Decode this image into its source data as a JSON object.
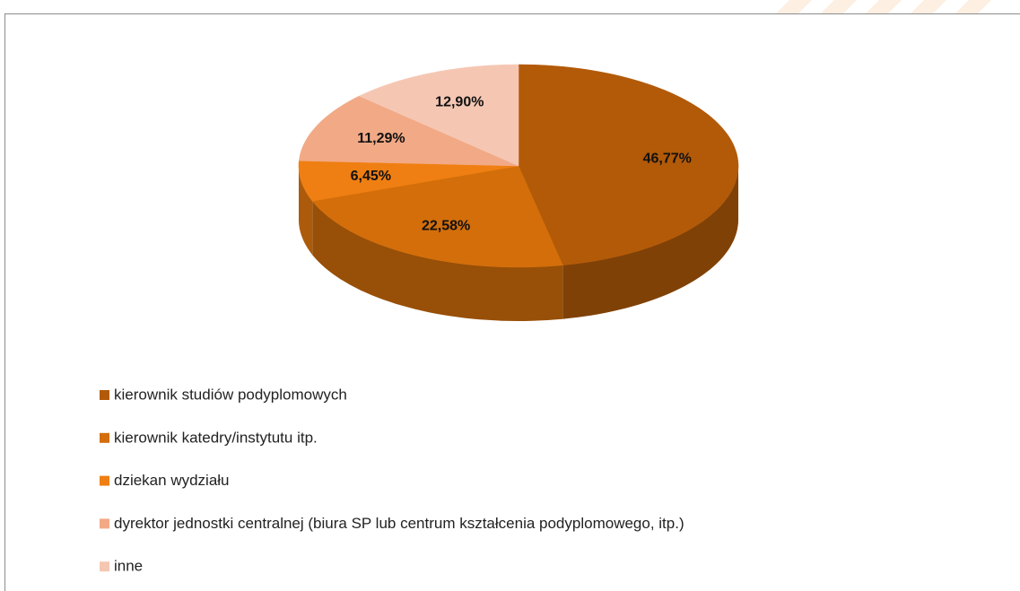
{
  "chart_data": {
    "type": "pie",
    "categories": [
      "kierownik studiów podyplomowych",
      "kierownik katedry/instytutu itp.",
      "dziekan wydziału",
      "dyrektor jednostki centralnej (biura SP lub centrum kształcenia podyplomowego, itp.)",
      "inne"
    ],
    "values": [
      46.77,
      22.58,
      6.45,
      11.29,
      12.9
    ],
    "value_labels": [
      "46,77%",
      "22,58%",
      "6,45%",
      "11,29%",
      "12,90%"
    ],
    "colors": [
      "#b25a08",
      "#d36e0a",
      "#ef7f12",
      "#f2a985",
      "#f5c7b3"
    ],
    "legend": "bottom-left"
  }
}
